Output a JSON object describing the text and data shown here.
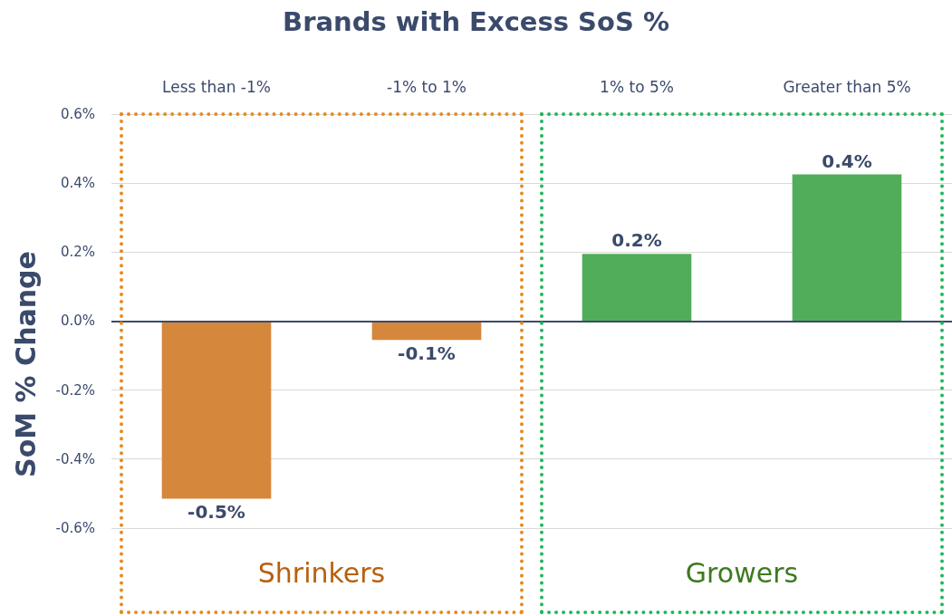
{
  "chart_data": {
    "type": "bar",
    "title": "Brands with Excess SoS %",
    "ylabel": "SoM % Change",
    "categories": [
      "Less than -1%",
      "-1% to 1%",
      "1% to 5%",
      "Greater than 5%"
    ],
    "values": [
      -0.515,
      -0.055,
      0.195,
      0.425
    ],
    "colors": [
      "#d5873b",
      "#d5873b",
      "#52ad5a",
      "#52ad5a"
    ],
    "value_labels": [
      "-0.5%",
      "-0.1%",
      "0.2%",
      "0.4%"
    ],
    "ylim": [
      -0.85,
      0.6
    ],
    "yticks": [
      {
        "value": -0.6,
        "label": "-0.6%"
      },
      {
        "value": -0.4,
        "label": "-0.4%"
      },
      {
        "value": -0.2,
        "label": "-0.2%"
      },
      {
        "value": 0,
        "label": "0.0%"
      },
      {
        "value": 0.2,
        "label": "0.2%"
      },
      {
        "value": 0.4,
        "label": "0.4%"
      },
      {
        "value": 0.6,
        "label": "0.6%"
      }
    ],
    "ref_lines": [
      {
        "axis": "y",
        "value": 0,
        "color": "#3b4a6b"
      }
    ],
    "annotations": [
      "Shrinkers",
      "Growers"
    ],
    "grid": "y"
  }
}
